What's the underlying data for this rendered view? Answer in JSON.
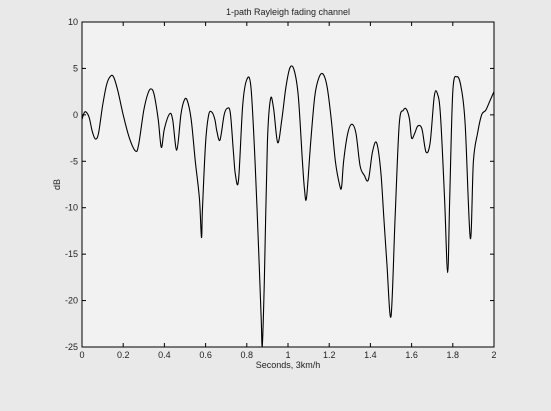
{
  "chart_data": {
    "type": "line",
    "title": "1-path Rayleigh fading channel",
    "xlabel": "Seconds, 3km/h",
    "ylabel": "dB",
    "xlim": [
      0,
      2
    ],
    "ylim": [
      -25,
      10
    ],
    "xticks": [
      "0",
      "0.2",
      "0.4",
      "0.6",
      "0.8",
      "1",
      "1.2",
      "1.4",
      "1.6",
      "1.8",
      "2"
    ],
    "yticks": [
      "10",
      "5",
      "0",
      "-5",
      "-10",
      "-15",
      "-20",
      "-25"
    ],
    "grid": false,
    "series": [
      {
        "color": "#000000",
        "x": [
          0,
          0.01,
          0.02,
          0.035,
          0.05,
          0.065,
          0.08,
          0.1,
          0.12,
          0.14,
          0.155,
          0.175,
          0.2,
          0.23,
          0.26,
          0.275,
          0.3,
          0.32,
          0.335,
          0.35,
          0.37,
          0.385,
          0.4,
          0.425,
          0.44,
          0.46,
          0.48,
          0.495,
          0.51,
          0.53,
          0.55,
          0.57,
          0.58,
          0.585,
          0.6,
          0.615,
          0.63,
          0.645,
          0.655,
          0.67,
          0.69,
          0.705,
          0.72,
          0.735,
          0.745,
          0.76,
          0.78,
          0.8,
          0.82,
          0.84,
          0.86,
          0.87,
          0.875,
          0.885,
          0.9,
          0.915,
          0.93,
          0.95,
          0.97,
          0.99,
          1.01,
          1.03,
          1.05,
          1.07,
          1.08,
          1.09,
          1.11,
          1.13,
          1.15,
          1.17,
          1.19,
          1.21,
          1.23,
          1.25,
          1.26,
          1.27,
          1.29,
          1.31,
          1.33,
          1.35,
          1.37,
          1.39,
          1.41,
          1.43,
          1.45,
          1.465,
          1.48,
          1.5,
          1.52,
          1.54,
          1.56,
          1.575,
          1.59,
          1.6,
          1.615,
          1.63,
          1.65,
          1.67,
          1.69,
          1.71,
          1.725,
          1.74,
          1.76,
          1.775,
          1.785,
          1.8,
          1.82,
          1.84,
          1.86,
          1.885,
          1.9,
          1.92,
          1.94,
          1.96,
          1.98,
          2.0
        ],
        "y": [
          -0.5,
          0.2,
          0.3,
          -0.3,
          -1.8,
          -2.6,
          -2.0,
          1.0,
          3.3,
          4.2,
          4.0,
          2.5,
          0.0,
          -2.5,
          -3.9,
          -3.2,
          0.5,
          2.3,
          2.8,
          2.2,
          -0.5,
          -3.5,
          -1.5,
          0.1,
          -0.5,
          -3.8,
          0.0,
          1.5,
          1.6,
          -0.5,
          -5.0,
          -9.0,
          -13.2,
          -10.0,
          -3.0,
          0.0,
          0.3,
          -0.5,
          -1.8,
          -2.7,
          0.0,
          0.7,
          0.2,
          -4.0,
          -6.5,
          -7.0,
          1.0,
          3.8,
          3.0,
          -5.0,
          -16.0,
          -22.0,
          -25.0,
          -18.0,
          -3.0,
          1.7,
          0.7,
          -3.0,
          -0.5,
          3.0,
          5.1,
          4.8,
          2.0,
          -5.0,
          -8.0,
          -8.9,
          -3.0,
          2.0,
          4.0,
          4.4,
          3.0,
          -0.5,
          -5.0,
          -7.5,
          -7.8,
          -5.0,
          -2.0,
          -1.0,
          -2.0,
          -5.5,
          -6.5,
          -7.0,
          -4.0,
          -3.0,
          -6.0,
          -11.0,
          -16.0,
          -21.7,
          -11.0,
          -1.0,
          0.5,
          0.6,
          -0.5,
          -2.5,
          -2.0,
          -1.2,
          -1.5,
          -4.0,
          -3.0,
          2.0,
          2.3,
          0.0,
          -9.0,
          -17.0,
          -9.0,
          2.5,
          4.1,
          3.0,
          -1.0,
          -13.3,
          -5.0,
          -2.0,
          0.0,
          0.5,
          1.5,
          2.5
        ]
      }
    ]
  }
}
